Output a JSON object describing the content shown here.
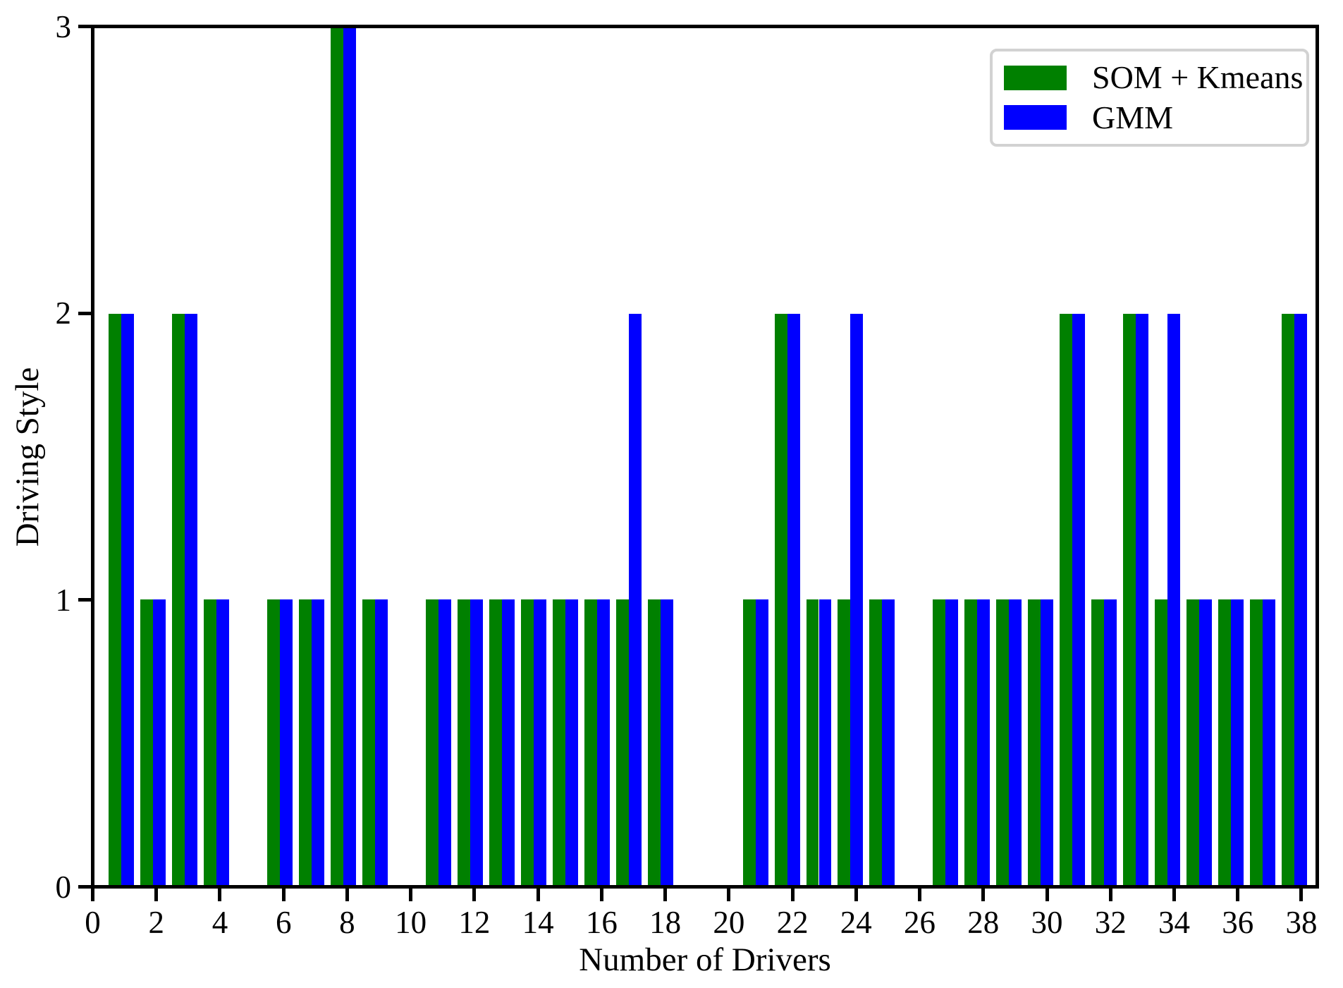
{
  "chart_data": {
    "type": "bar",
    "title": "",
    "xlabel": "Number of Drivers",
    "ylabel": "Driving Style",
    "categories": [
      1,
      2,
      3,
      4,
      5,
      6,
      7,
      8,
      9,
      10,
      11,
      12,
      13,
      14,
      15,
      16,
      17,
      18,
      19,
      20,
      21,
      22,
      23,
      24,
      25,
      26,
      27,
      28,
      29,
      30,
      31,
      32,
      33,
      34,
      35,
      36,
      37,
      38
    ],
    "series": [
      {
        "name": "SOM + Kmeans",
        "color": "#008000",
        "values": [
          2,
          1,
          2,
          1,
          0,
          1,
          1,
          3,
          1,
          0,
          1,
          1,
          1,
          1,
          1,
          1,
          1,
          1,
          0,
          0,
          1,
          2,
          1,
          1,
          1,
          0,
          1,
          1,
          1,
          1,
          2,
          1,
          2,
          1,
          1,
          1,
          1,
          2
        ]
      },
      {
        "name": "GMM",
        "color": "#0000ff",
        "values": [
          2,
          1,
          2,
          1,
          0,
          1,
          1,
          3,
          1,
          0,
          1,
          1,
          1,
          1,
          1,
          1,
          2,
          1,
          0,
          0,
          1,
          2,
          1,
          2,
          1,
          0,
          1,
          1,
          1,
          1,
          2,
          1,
          2,
          2,
          1,
          1,
          1,
          2
        ]
      }
    ],
    "xticks": [
      0,
      2,
      4,
      6,
      8,
      10,
      12,
      14,
      16,
      18,
      20,
      22,
      24,
      26,
      28,
      30,
      32,
      34,
      36,
      38
    ],
    "yticks": [
      0,
      1,
      2,
      3
    ],
    "xlim": [
      0,
      38.5
    ],
    "ylim": [
      0,
      3
    ],
    "bar_width": 0.4,
    "grid": false,
    "legend_position": "upper-right",
    "axis_color": "#000000",
    "background_color": "#ffffff"
  }
}
